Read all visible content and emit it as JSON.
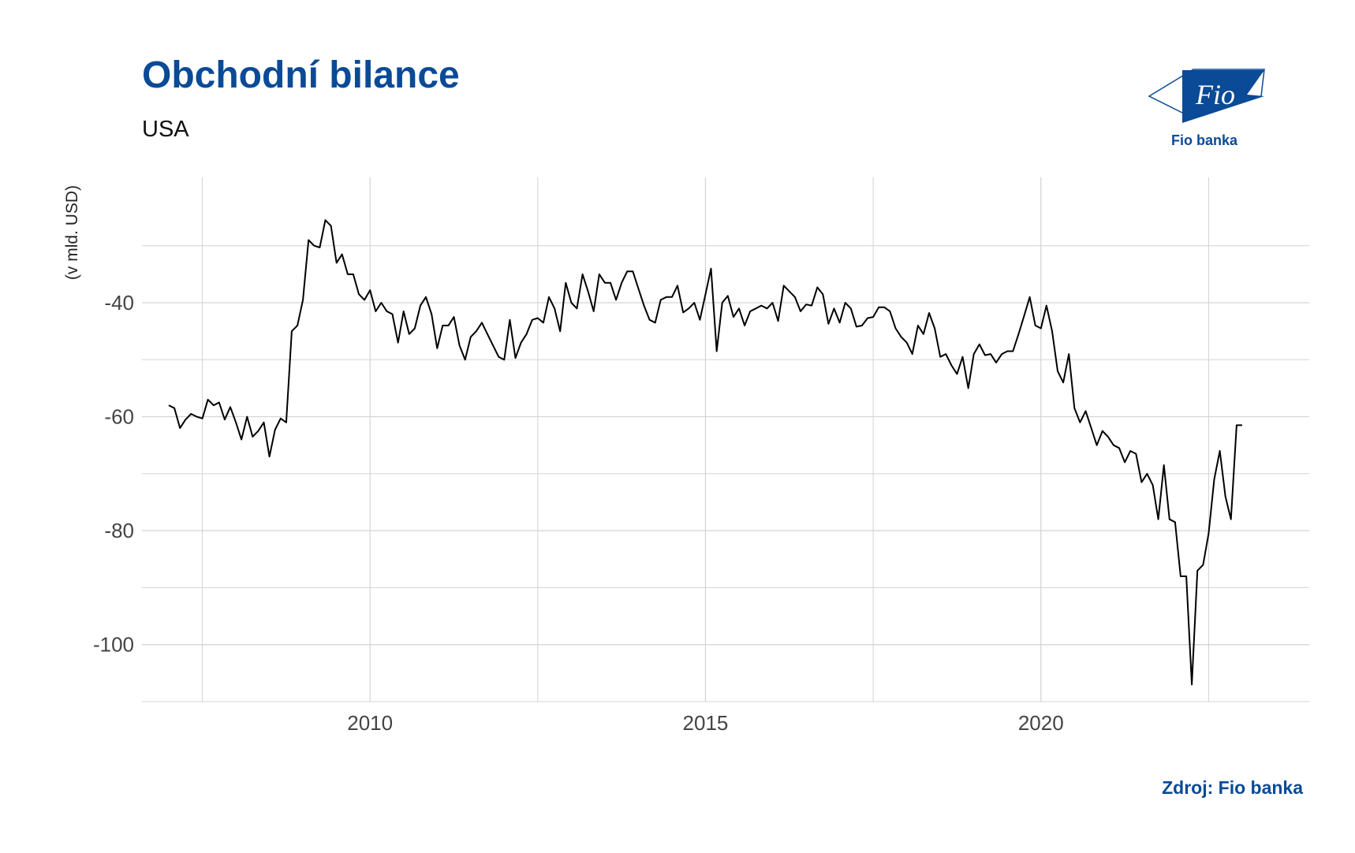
{
  "header": {
    "title": "Obchodní bilance",
    "subtitle": "USA"
  },
  "logo": {
    "mark_text": "Fio",
    "caption": "Fio banka"
  },
  "source": "Zdroj: Fio banka",
  "colors": {
    "brand": "#0a4a96",
    "line": "#000000",
    "grid": "#d3d3d3"
  },
  "chart_data": {
    "type": "line",
    "title": "Obchodní bilance",
    "subtitle": "USA",
    "xlabel": "",
    "ylabel": "(v mld. USD)",
    "xlim": [
      2006.6,
      2024.0
    ],
    "ylim": [
      -110,
      -18
    ],
    "x_ticks": [
      2010,
      2015,
      2020
    ],
    "y_ticks": [
      -100,
      -80,
      -60,
      -40
    ],
    "grid": true,
    "x": [
      2007.0,
      2007.083,
      2007.167,
      2007.25,
      2007.333,
      2007.417,
      2007.5,
      2007.583,
      2007.667,
      2007.75,
      2007.833,
      2007.917,
      2008.0,
      2008.083,
      2008.167,
      2008.25,
      2008.333,
      2008.417,
      2008.5,
      2008.583,
      2008.667,
      2008.75,
      2008.833,
      2008.917,
      2009.0,
      2009.083,
      2009.167,
      2009.25,
      2009.333,
      2009.417,
      2009.5,
      2009.583,
      2009.667,
      2009.75,
      2009.833,
      2009.917,
      2010.0,
      2010.083,
      2010.167,
      2010.25,
      2010.333,
      2010.417,
      2010.5,
      2010.583,
      2010.667,
      2010.75,
      2010.833,
      2010.917,
      2011.0,
      2011.083,
      2011.167,
      2011.25,
      2011.333,
      2011.417,
      2011.5,
      2011.583,
      2011.667,
      2011.75,
      2011.833,
      2011.917,
      2012.0,
      2012.083,
      2012.167,
      2012.25,
      2012.333,
      2012.417,
      2012.5,
      2012.583,
      2012.667,
      2012.75,
      2012.833,
      2012.917,
      2013.0,
      2013.083,
      2013.167,
      2013.25,
      2013.333,
      2013.417,
      2013.5,
      2013.583,
      2013.667,
      2013.75,
      2013.833,
      2013.917,
      2014.0,
      2014.083,
      2014.167,
      2014.25,
      2014.333,
      2014.417,
      2014.5,
      2014.583,
      2014.667,
      2014.75,
      2014.833,
      2014.917,
      2015.0,
      2015.083,
      2015.167,
      2015.25,
      2015.333,
      2015.417,
      2015.5,
      2015.583,
      2015.667,
      2015.75,
      2015.833,
      2015.917,
      2016.0,
      2016.083,
      2016.167,
      2016.25,
      2016.333,
      2016.417,
      2016.5,
      2016.583,
      2016.667,
      2016.75,
      2016.833,
      2016.917,
      2017.0,
      2017.083,
      2017.167,
      2017.25,
      2017.333,
      2017.417,
      2017.5,
      2017.583,
      2017.667,
      2017.75,
      2017.833,
      2017.917,
      2018.0,
      2018.083,
      2018.167,
      2018.25,
      2018.333,
      2018.417,
      2018.5,
      2018.583,
      2018.667,
      2018.75,
      2018.833,
      2018.917,
      2019.0,
      2019.083,
      2019.167,
      2019.25,
      2019.333,
      2019.417,
      2019.5,
      2019.583,
      2019.667,
      2019.75,
      2019.833,
      2019.917,
      2020.0,
      2020.083,
      2020.167,
      2020.25,
      2020.333,
      2020.417,
      2020.5,
      2020.583,
      2020.667,
      2020.75,
      2020.833,
      2020.917,
      2021.0,
      2021.083,
      2021.167,
      2021.25,
      2021.333,
      2021.417,
      2021.5,
      2021.583,
      2021.667,
      2021.75,
      2021.833,
      2021.917,
      2022.0,
      2022.083,
      2022.167,
      2022.25,
      2022.333,
      2022.417,
      2022.5,
      2022.583,
      2022.667,
      2022.75,
      2022.833,
      2022.917,
      2023.0
    ],
    "series": [
      {
        "values": [
          -58,
          -58.5,
          -62,
          -60.5,
          -59.5,
          -60,
          -60.3,
          -57,
          -58,
          -57.5,
          -60.5,
          -58.3,
          -61,
          -64,
          -60,
          -63.5,
          -62.5,
          -61,
          -67,
          -62.3,
          -60.3,
          -61,
          -45,
          -44,
          -39.5,
          -29,
          -30,
          -30.3,
          -25.5,
          -26.5,
          -33,
          -31.5,
          -35,
          -35,
          -38.5,
          -39.5,
          -37.8,
          -41.5,
          -40,
          -41.5,
          -42,
          -47,
          -41.5,
          -45.5,
          -44.5,
          -40.5,
          -39,
          -42,
          -48,
          -44,
          -44,
          -42.5,
          -47.5,
          -50,
          -46,
          -45,
          -43.5,
          -45.5,
          -47.5,
          -49.5,
          -50,
          -43,
          -49.7,
          -47,
          -45.5,
          -43,
          -42.7,
          -43.5,
          -39,
          -41,
          -45,
          -36.5,
          -40,
          -41,
          -35,
          -38,
          -41.5,
          -35,
          -36.5,
          -36.5,
          -39.5,
          -36.5,
          -34.5,
          -34.5,
          -37.5,
          -40.5,
          -43,
          -43.5,
          -39.5,
          -39,
          -39,
          -37,
          -41.7,
          -41,
          -40,
          -43,
          -38.5,
          -34,
          -48.5,
          -40,
          -38.8,
          -42.5,
          -41,
          -44,
          -41.5,
          -41,
          -40.5,
          -41,
          -40,
          -43.2,
          -37,
          -38,
          -39,
          -41.5,
          -40.3,
          -40.5,
          -37.3,
          -38.5,
          -43.7,
          -41,
          -43.5,
          -40,
          -41,
          -44.2,
          -44,
          -42.7,
          -42.5,
          -40.8,
          -40.8,
          -41.5,
          -44.5,
          -46,
          -47,
          -49,
          -44,
          -45.5,
          -41.8,
          -44.5,
          -49.5,
          -49,
          -51,
          -52.5,
          -49.5,
          -55,
          -49,
          -47.3,
          -49.2,
          -49,
          -50.5,
          -49,
          -48.5,
          -48.5,
          -45.5,
          -42.3,
          -39,
          -44,
          -44.5,
          -40.5,
          -45,
          -52,
          -54,
          -49,
          -58.5,
          -61,
          -59,
          -62,
          -65,
          -62.5,
          -63.5,
          -65,
          -65.5,
          -68,
          -66,
          -66.5,
          -71.5,
          -70,
          -72,
          -78,
          -68.5,
          -78,
          -78.5,
          -88,
          -88,
          -107,
          -87,
          -86,
          -80.5,
          -71,
          -66,
          -74,
          -78,
          -61.5,
          -61.5
        ]
      }
    ]
  }
}
